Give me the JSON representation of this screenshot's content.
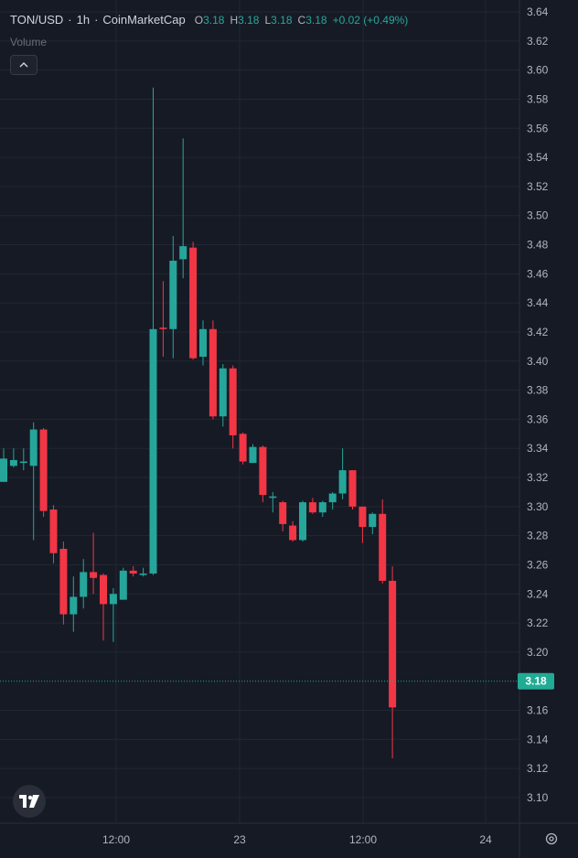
{
  "legend": {
    "symbol": "TON/USD",
    "sep1": "·",
    "interval": "1h",
    "sep2": "·",
    "source": "CoinMarketCap",
    "o_label": "O",
    "o_value": "3.18",
    "h_label": "H",
    "h_value": "3.18",
    "l_label": "L",
    "l_value": "3.18",
    "c_label": "C",
    "c_value": "3.18",
    "change": "+0.02 (+0.49%)"
  },
  "volume_label": "Volume",
  "collapse_icon": "chevron-up-icon",
  "logo_icon": "tradingview-logo-icon",
  "settings_icon": "gear-icon",
  "colors": {
    "background": "#161a25",
    "grid": "#232733",
    "up": "#26a69a",
    "down": "#f23645",
    "text": "#d1d4dc",
    "axis_text": "#b2b5be",
    "price_badge": "#22ab94"
  },
  "chart_data": {
    "type": "candlestick",
    "y_ticks": [
      "3.64",
      "3.62",
      "3.60",
      "3.58",
      "3.56",
      "3.54",
      "3.52",
      "3.50",
      "3.48",
      "3.46",
      "3.44",
      "3.42",
      "3.40",
      "3.38",
      "3.36",
      "3.34",
      "3.32",
      "3.30",
      "3.28",
      "3.26",
      "3.24",
      "3.22",
      "3.20",
      "3.16",
      "3.14",
      "3.12",
      "3.10"
    ],
    "x_ticks": [
      "12:00",
      "23",
      "12:00",
      "24"
    ],
    "last_price": "3.18",
    "candles": [
      {
        "o": 3.317,
        "h": 3.34,
        "l": 3.317,
        "c": 3.333
      },
      {
        "o": 3.328,
        "h": 3.34,
        "l": 3.327,
        "c": 3.332
      },
      {
        "o": 3.33,
        "h": 3.34,
        "l": 3.325,
        "c": 3.331
      },
      {
        "o": 3.328,
        "h": 3.358,
        "l": 3.277,
        "c": 3.353
      },
      {
        "o": 3.353,
        "h": 3.354,
        "l": 3.293,
        "c": 3.297
      },
      {
        "o": 3.298,
        "h": 3.301,
        "l": 3.261,
        "c": 3.268
      },
      {
        "o": 3.271,
        "h": 3.276,
        "l": 3.219,
        "c": 3.226
      },
      {
        "o": 3.226,
        "h": 3.252,
        "l": 3.214,
        "c": 3.238
      },
      {
        "o": 3.238,
        "h": 3.264,
        "l": 3.23,
        "c": 3.255
      },
      {
        "o": 3.255,
        "h": 3.282,
        "l": 3.24,
        "c": 3.251
      },
      {
        "o": 3.253,
        "h": 3.254,
        "l": 3.208,
        "c": 3.233
      },
      {
        "o": 3.233,
        "h": 3.244,
        "l": 3.207,
        "c": 3.24
      },
      {
        "o": 3.236,
        "h": 3.258,
        "l": 3.236,
        "c": 3.256
      },
      {
        "o": 3.256,
        "h": 3.259,
        "l": 3.252,
        "c": 3.254
      },
      {
        "o": 3.253,
        "h": 3.258,
        "l": 3.252,
        "c": 3.254
      },
      {
        "o": 3.254,
        "h": 3.588,
        "l": 3.253,
        "c": 3.422
      },
      {
        "o": 3.423,
        "h": 3.455,
        "l": 3.403,
        "c": 3.422
      },
      {
        "o": 3.422,
        "h": 3.486,
        "l": 3.402,
        "c": 3.469
      },
      {
        "o": 3.47,
        "h": 3.553,
        "l": 3.457,
        "c": 3.479
      },
      {
        "o": 3.478,
        "h": 3.482,
        "l": 3.401,
        "c": 3.402
      },
      {
        "o": 3.403,
        "h": 3.428,
        "l": 3.397,
        "c": 3.422
      },
      {
        "o": 3.422,
        "h": 3.428,
        "l": 3.36,
        "c": 3.362
      },
      {
        "o": 3.362,
        "h": 3.398,
        "l": 3.355,
        "c": 3.395
      },
      {
        "o": 3.395,
        "h": 3.397,
        "l": 3.34,
        "c": 3.349
      },
      {
        "o": 3.35,
        "h": 3.351,
        "l": 3.329,
        "c": 3.331
      },
      {
        "o": 3.33,
        "h": 3.343,
        "l": 3.33,
        "c": 3.341
      },
      {
        "o": 3.341,
        "h": 3.342,
        "l": 3.303,
        "c": 3.308
      },
      {
        "o": 3.306,
        "h": 3.31,
        "l": 3.296,
        "c": 3.307
      },
      {
        "o": 3.303,
        "h": 3.304,
        "l": 3.283,
        "c": 3.288
      },
      {
        "o": 3.287,
        "h": 3.29,
        "l": 3.276,
        "c": 3.277
      },
      {
        "o": 3.277,
        "h": 3.304,
        "l": 3.276,
        "c": 3.303
      },
      {
        "o": 3.303,
        "h": 3.306,
        "l": 3.295,
        "c": 3.296
      },
      {
        "o": 3.296,
        "h": 3.304,
        "l": 3.293,
        "c": 3.303
      },
      {
        "o": 3.303,
        "h": 3.31,
        "l": 3.298,
        "c": 3.309
      },
      {
        "o": 3.309,
        "h": 3.34,
        "l": 3.305,
        "c": 3.325
      },
      {
        "o": 3.325,
        "h": 3.325,
        "l": 3.298,
        "c": 3.3
      },
      {
        "o": 3.3,
        "h": 3.3,
        "l": 3.275,
        "c": 3.286
      },
      {
        "o": 3.286,
        "h": 3.296,
        "l": 3.281,
        "c": 3.295
      },
      {
        "o": 3.295,
        "h": 3.305,
        "l": 3.247,
        "c": 3.249
      },
      {
        "o": 3.249,
        "h": 3.259,
        "l": 3.127,
        "c": 3.162
      }
    ]
  }
}
